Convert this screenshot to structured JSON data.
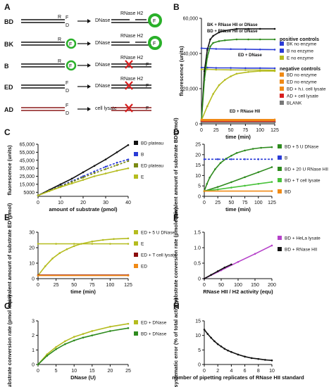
{
  "panel_letters": [
    "A",
    "B",
    "C",
    "D",
    "E",
    "F",
    "G",
    "H"
  ],
  "schematic": {
    "rows": [
      {
        "label": "BD",
        "enzymes": "DNase",
        "enzymes2": "RNase H2",
        "outcome": "cleaved"
      },
      {
        "label": "BK",
        "enzymes": "DNase",
        "enzymes2": "RNase H2",
        "outcome": "cleaved"
      },
      {
        "label": "B",
        "enzymes": "DNase",
        "enzymes2": "RNase H2",
        "outcome": "blocked"
      },
      {
        "label": "ED",
        "enzymes": "DNase",
        "enzymes2": "RNase H2",
        "outcome": "blocked"
      },
      {
        "label": "AD",
        "enzymes": "cell lysate",
        "enzymes2": "",
        "outcome": "blocked"
      }
    ],
    "marks": {
      "R": "R",
      "F": "F",
      "D": "D"
    }
  },
  "colors": {
    "black": "#111111",
    "blue": "#2a3bd6",
    "yellowgreen": "#b5bc1f",
    "green": "#2e8b1e",
    "lightgreen": "#48c23a",
    "orange": "#f08a16",
    "red": "#d81e1e",
    "purple": "#b541c9",
    "gray": "#777777",
    "olive": "#7a8a14",
    "darkred": "#8b0d0d"
  },
  "chart_data": [
    {
      "id": "B",
      "type": "line",
      "xlabel": "time (min)",
      "ylabel": "fluorescence (units)",
      "xlim": [
        0,
        125
      ],
      "ylim": [
        0,
        60000
      ],
      "xticks": [
        0,
        25,
        50,
        75,
        100,
        125
      ],
      "yticks": [
        0,
        20000,
        40000,
        60000
      ],
      "ytick_labels": [
        "0",
        "20,000",
        "40,000",
        "60,000"
      ],
      "annotations": [
        "BK + RNase HII or DNase",
        "BD + RNase HII or DNase",
        "ED + DNase",
        "ED + RNase HII"
      ],
      "legend_titles": [
        "positive controls",
        "negative controls"
      ],
      "series": [
        {
          "name": "BK no enzyme",
          "color": "blue",
          "x": [
            0,
            10,
            25,
            50,
            75,
            100,
            125
          ],
          "y": [
            43000,
            42800,
            42600,
            42500,
            42400,
            42300,
            42200
          ]
        },
        {
          "name": "B no enzyme",
          "color": "blue",
          "x": [
            0,
            10,
            25,
            50,
            75,
            100,
            125
          ],
          "y": [
            32000,
            32000,
            31800,
            31800,
            31700,
            31700,
            31600
          ]
        },
        {
          "name": "E no enzyme",
          "color": "yellowgreen",
          "x": [
            0,
            10,
            25,
            50,
            75,
            100,
            125
          ],
          "y": [
            31000,
            31000,
            30800,
            30700,
            30600,
            30600,
            30500
          ]
        },
        {
          "name": "BK + RNase HII or DNase",
          "color": "black",
          "x": [
            0,
            5,
            10,
            15,
            20,
            30,
            40,
            60,
            80,
            100,
            125
          ],
          "y": [
            2000,
            30000,
            42000,
            48000,
            50000,
            52000,
            53000,
            54000,
            54000,
            54000,
            54000
          ]
        },
        {
          "name": "BD + RNase HII or DNase",
          "color": "green",
          "x": [
            0,
            5,
            10,
            15,
            20,
            30,
            40,
            60,
            80,
            100,
            125
          ],
          "y": [
            2000,
            25000,
            38000,
            44000,
            46000,
            47000,
            47500,
            48000,
            48000,
            48000,
            48000
          ]
        },
        {
          "name": "ED + DNase",
          "color": "yellowgreen",
          "x": [
            0,
            10,
            20,
            30,
            40,
            50,
            60,
            80,
            100,
            125
          ],
          "y": [
            2000,
            10000,
            17000,
            22000,
            25000,
            27000,
            28500,
            29500,
            30000,
            30000
          ]
        },
        {
          "name": "BD no enzyme",
          "color": "orange",
          "x": [
            0,
            125
          ],
          "y": [
            2000,
            2000
          ]
        },
        {
          "name": "ED no enzyme",
          "color": "orange",
          "x": [
            0,
            125
          ],
          "y": [
            1500,
            1500
          ]
        },
        {
          "name": "BD + h.i. cell lysate",
          "color": "orange",
          "x": [
            0,
            125
          ],
          "y": [
            2500,
            2500
          ]
        },
        {
          "name": "AD + cell lysate",
          "color": "red",
          "x": [
            0,
            125
          ],
          "y": [
            1200,
            1200
          ]
        },
        {
          "name": "BLANK",
          "color": "gray",
          "x": [
            0,
            125
          ],
          "y": [
            800,
            800
          ]
        }
      ]
    },
    {
      "id": "C",
      "type": "line",
      "xlabel": "amount of substrate (pmol)",
      "ylabel": "fluorescence (units)",
      "xlim": [
        0,
        40
      ],
      "ylim": [
        0,
        65000
      ],
      "xticks": [
        0,
        10,
        20,
        30,
        40
      ],
      "yticks": [
        5000,
        15000,
        25000,
        35000,
        45000,
        55000,
        65000
      ],
      "ytick_labels": [
        "5000",
        "15,000",
        "25,000",
        "35,000",
        "45,000",
        "55,000",
        "65,000"
      ],
      "series": [
        {
          "name": "BD plateau",
          "color": "black",
          "x": [
            0,
            5,
            10,
            15,
            20,
            25,
            30,
            35,
            40
          ],
          "y": [
            1000,
            8000,
            15000,
            22000,
            30000,
            38000,
            46000,
            55000,
            64000
          ]
        },
        {
          "name": "B",
          "color": "blue",
          "x": [
            0,
            5,
            10,
            15,
            20,
            25,
            30,
            35,
            40
          ],
          "y": [
            1000,
            7000,
            13000,
            19000,
            25000,
            31000,
            37000,
            42000,
            46000
          ]
        },
        {
          "name": "ED plateau",
          "color": "olive",
          "x": [
            0,
            5,
            10,
            15,
            20,
            25,
            30,
            35,
            40
          ],
          "y": [
            1000,
            7000,
            12500,
            18000,
            23500,
            29000,
            34000,
            39000,
            44000
          ]
        },
        {
          "name": "E",
          "color": "yellowgreen",
          "x": [
            0,
            5,
            10,
            15,
            20,
            25,
            30,
            35,
            40
          ],
          "y": [
            1000,
            6500,
            11500,
            16000,
            20500,
            25000,
            28500,
            32000,
            35000
          ]
        }
      ]
    },
    {
      "id": "D",
      "type": "line",
      "xlabel": "time (min)",
      "ylabel": "equivalent amount of substrate BD (pmol)",
      "xlim": [
        0,
        125
      ],
      "ylim": [
        0,
        25
      ],
      "xticks": [
        0,
        25,
        50,
        75,
        100,
        125
      ],
      "yticks": [
        0,
        5,
        10,
        15,
        20,
        25
      ],
      "series": [
        {
          "name": "BD + 5 U DNase",
          "color": "green",
          "x": [
            0,
            5,
            10,
            20,
            30,
            40,
            50,
            60,
            75,
            90,
            105,
            125
          ],
          "y": [
            2.5,
            6,
            9,
            13,
            16,
            18,
            19.5,
            20.8,
            22,
            22.8,
            23.3,
            23.6
          ]
        },
        {
          "name": "B",
          "color": "blue",
          "x": [
            0,
            25,
            50,
            75,
            100,
            125
          ],
          "y": [
            17.8,
            17.8,
            17.8,
            17.8,
            17.8,
            17.8
          ]
        },
        {
          "name": "BD + 20 U RNase HII",
          "color": "green",
          "x": [
            0,
            25,
            50,
            75,
            100,
            125
          ],
          "y": [
            2.5,
            4.5,
            6.8,
            9.2,
            11.6,
            14
          ]
        },
        {
          "name": "BD + T cell lysate",
          "color": "lightgreen",
          "x": [
            0,
            25,
            50,
            75,
            100,
            125
          ],
          "y": [
            2.5,
            3.3,
            4.2,
            5.1,
            6,
            6.9
          ]
        },
        {
          "name": "BD",
          "color": "orange",
          "x": [
            0,
            125
          ],
          "y": [
            2.5,
            2.5
          ]
        }
      ]
    },
    {
      "id": "E",
      "type": "line",
      "xlabel": "time (min)",
      "ylabel": "equivalent amount of substrate ED (pmol)",
      "xlim": [
        0,
        125
      ],
      "ylim": [
        0,
        30
      ],
      "xticks": [
        0,
        25,
        50,
        75,
        100,
        125
      ],
      "yticks": [
        0,
        10,
        20,
        30
      ],
      "series": [
        {
          "name": "ED + 5 U DNase",
          "color": "yellowgreen",
          "x": [
            0,
            10,
            20,
            30,
            40,
            50,
            60,
            75,
            90,
            105,
            125
          ],
          "y": [
            2,
            8,
            13,
            16.5,
            19,
            21,
            22.5,
            24,
            25,
            25.6,
            26
          ]
        },
        {
          "name": "E",
          "color": "yellowgreen",
          "x": [
            0,
            25,
            50,
            75,
            100,
            125
          ],
          "y": [
            22.5,
            22.5,
            22.5,
            22.5,
            22.5,
            22.5
          ]
        },
        {
          "name": "ED + T cell lysate",
          "color": "darkred",
          "x": [
            0,
            125
          ],
          "y": [
            2.3,
            2.3
          ]
        },
        {
          "name": "ED",
          "color": "orange",
          "x": [
            0,
            125
          ],
          "y": [
            2,
            2
          ]
        }
      ]
    },
    {
      "id": "F",
      "type": "line",
      "xlabel": "RNase HII / H2 activity (equ)",
      "ylabel": "substrate conversion rate (pmol / min)",
      "xlim": [
        0,
        200
      ],
      "ylim": [
        0,
        1.5
      ],
      "xticks": [
        0,
        50,
        100,
        150,
        200
      ],
      "yticks": [
        0,
        0.5,
        1.0,
        1.5
      ],
      "ytick_labels": [
        "0",
        "0.5",
        "1.0",
        "1.5"
      ],
      "series": [
        {
          "name": "BD + HeLa lysate",
          "color": "purple",
          "x": [
            0,
            50,
            100,
            150,
            200
          ],
          "y": [
            0,
            0.27,
            0.54,
            0.8,
            1.07
          ]
        },
        {
          "name": "BD + RNase HII",
          "color": "black",
          "x": [
            0,
            20,
            40,
            60,
            80
          ],
          "y": [
            0,
            0.12,
            0.24,
            0.36,
            0.46
          ]
        }
      ]
    },
    {
      "id": "G",
      "type": "line",
      "xlabel": "DNase (U)",
      "ylabel": "substrate conversion rate (pmol / min)",
      "xlim": [
        0,
        25
      ],
      "ylim": [
        0,
        3
      ],
      "xticks": [
        0,
        5,
        10,
        15,
        20,
        25
      ],
      "yticks": [
        0,
        1,
        2,
        3
      ],
      "series": [
        {
          "name": "ED + DNase",
          "color": "yellowgreen",
          "x": [
            0,
            2.5,
            5,
            7.5,
            10,
            12.5,
            15,
            20,
            25
          ],
          "y": [
            0,
            0.7,
            1.2,
            1.6,
            1.9,
            2.1,
            2.3,
            2.6,
            2.8
          ]
        },
        {
          "name": "BD + DNase",
          "color": "green",
          "x": [
            0,
            2.5,
            5,
            7.5,
            10,
            12.5,
            15,
            20,
            25
          ],
          "y": [
            0,
            0.6,
            1.05,
            1.4,
            1.65,
            1.85,
            2.0,
            2.3,
            2.5
          ]
        }
      ]
    },
    {
      "id": "H",
      "type": "line",
      "xlabel": "number of pipetting replicates of RNase HII standard",
      "ylabel": "systematic error (% of total activity)",
      "xlim": [
        0,
        10
      ],
      "ylim": [
        0,
        15
      ],
      "xticks": [
        0,
        2,
        4,
        6,
        8,
        10
      ],
      "yticks": [
        0,
        5,
        10,
        15
      ],
      "series": [
        {
          "name": "systematic error",
          "color": "black",
          "x": [
            0,
            0.5,
            1,
            1.5,
            2,
            2.5,
            3,
            3.5,
            4,
            5,
            6,
            7,
            8,
            9,
            10
          ],
          "y": [
            12,
            10.5,
            9.2,
            8,
            7,
            6.2,
            5.4,
            4.8,
            4.3,
            3.4,
            2.7,
            2.2,
            1.9,
            1.6,
            1.4
          ]
        }
      ]
    }
  ]
}
